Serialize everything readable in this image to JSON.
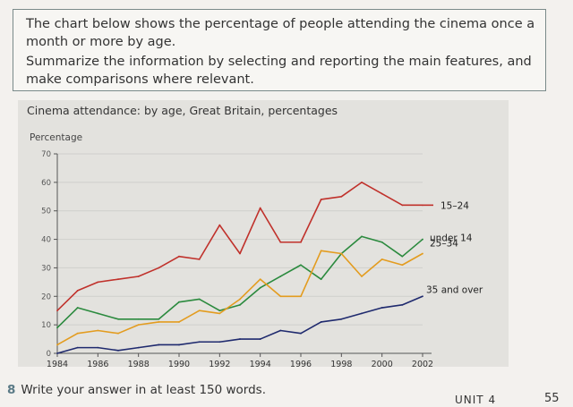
{
  "task": {
    "line1": "The chart below shows the percentage of people attending the cinema once a month or more by age.",
    "line2": "Summarize the information by selecting and reporting the main features, and make comparisons where relevant."
  },
  "footer": {
    "number": "8",
    "text": "Write your answer in at least 150 words."
  },
  "page": {
    "unit": "UNIT 4",
    "number": "55"
  },
  "chart_data": {
    "type": "line",
    "title": "Cinema attendance: by age, Great Britain, percentages",
    "ylabel": "Percentage",
    "xlabel": "",
    "ylim": [
      0,
      70
    ],
    "xlim": [
      1984,
      2002
    ],
    "y_ticks": [
      0,
      10,
      20,
      30,
      40,
      50,
      60,
      70
    ],
    "x_ticks": [
      1984,
      1986,
      1988,
      1990,
      1992,
      1994,
      1996,
      1998,
      2000,
      2002
    ],
    "grid": true,
    "series": [
      {
        "name": "15–24",
        "color": "#c0312b",
        "x": [
          1984,
          1985,
          1986,
          1987,
          1988,
          1989,
          1990,
          1991,
          1992,
          1993,
          1994,
          1995,
          1996,
          1997,
          1998,
          1999,
          2000,
          2001,
          2002
        ],
        "values": [
          15,
          22,
          25,
          26,
          27,
          30,
          34,
          33,
          45,
          35,
          51,
          39,
          39,
          54,
          55,
          60,
          56,
          52,
          52
        ]
      },
      {
        "name": "under 14",
        "color": "#2b8a3e",
        "x": [
          1984,
          1985,
          1986,
          1987,
          1988,
          1989,
          1990,
          1991,
          1992,
          1993,
          1994,
          1995,
          1996,
          1997,
          1998,
          1999,
          2000,
          2001,
          2002
        ],
        "values": [
          9,
          16,
          14,
          12,
          12,
          12,
          18,
          19,
          15,
          17,
          23,
          27,
          31,
          26,
          35,
          41,
          39,
          34,
          40
        ]
      },
      {
        "name": "25–34",
        "color": "#e39c1f",
        "x": [
          1984,
          1985,
          1986,
          1987,
          1988,
          1989,
          1990,
          1991,
          1992,
          1993,
          1994,
          1995,
          1996,
          1997,
          1998,
          1999,
          2000,
          2001,
          2002
        ],
        "values": [
          3,
          7,
          8,
          7,
          10,
          11,
          11,
          15,
          14,
          19,
          26,
          20,
          20,
          36,
          35,
          27,
          33,
          31,
          35
        ]
      },
      {
        "name": "35 and over",
        "color": "#1f2a6e",
        "x": [
          1984,
          1985,
          1986,
          1987,
          1988,
          1989,
          1990,
          1991,
          1992,
          1993,
          1994,
          1995,
          1996,
          1997,
          1998,
          1999,
          2000,
          2001,
          2002
        ],
        "values": [
          0,
          2,
          2,
          1,
          2,
          3,
          3,
          4,
          4,
          5,
          5,
          8,
          7,
          11,
          12,
          14,
          16,
          17,
          20
        ]
      }
    ]
  }
}
